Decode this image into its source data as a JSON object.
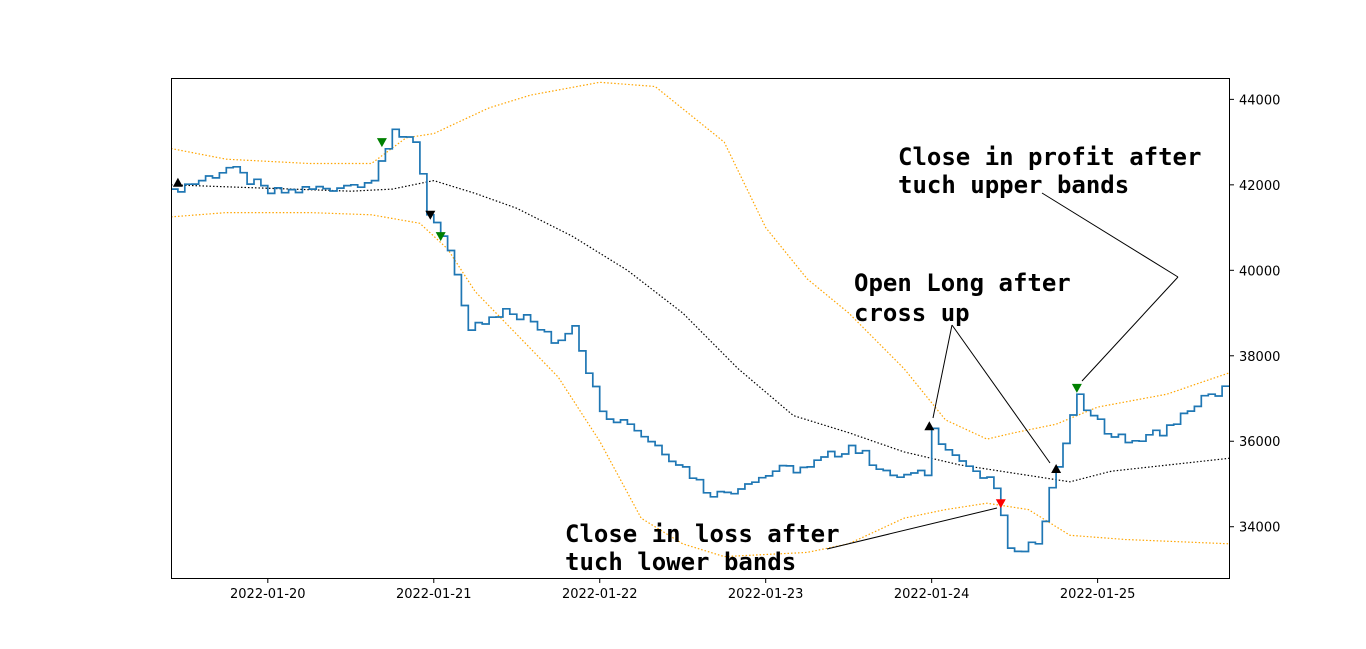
{
  "chart_data": {
    "type": "line",
    "title": "",
    "xlabel": "",
    "ylabel": "",
    "x_range": [
      "2022-01-19 10:00",
      "2022-01-25 19:00"
    ],
    "ylim": [
      32800,
      44500
    ],
    "y_axis_side": "right",
    "grid": false,
    "x_ticks": [
      "2022-01-20",
      "2022-01-21",
      "2022-01-22",
      "2022-01-23",
      "2022-01-24",
      "2022-01-25"
    ],
    "y_ticks": [
      34000,
      36000,
      38000,
      40000,
      42000,
      44000
    ],
    "y_tick_labels": [
      "34000",
      "36000",
      "38000",
      "40000",
      "42000",
      "44000"
    ],
    "colors": {
      "price": "#1f77b4",
      "bands": "#ffa500",
      "middle": "#000000",
      "marker_black": "#000000",
      "marker_green": "#008000",
      "marker_red": "#ff0000"
    },
    "price_anchors": [
      [
        "2022-01-19 10:00",
        41900
      ],
      [
        "2022-01-19 14:00",
        42100
      ],
      [
        "2022-01-19 18:00",
        42400
      ],
      [
        "2022-01-20 00:00",
        41800
      ],
      [
        "2022-01-20 06:00",
        41900
      ],
      [
        "2022-01-20 12:00",
        42000
      ],
      [
        "2022-01-20 15:00",
        42100
      ],
      [
        "2022-01-20 18:00",
        43300
      ],
      [
        "2022-01-20 21:00",
        43000
      ],
      [
        "2022-01-20 23:00",
        41300
      ],
      [
        "2022-01-21 01:00",
        40800
      ],
      [
        "2022-01-21 03:00",
        39900
      ],
      [
        "2022-01-21 05:00",
        38600
      ],
      [
        "2022-01-21 10:00",
        39100
      ],
      [
        "2022-01-21 14:00",
        38800
      ],
      [
        "2022-01-21 17:00",
        38300
      ],
      [
        "2022-01-21 20:00",
        38700
      ],
      [
        "2022-01-22 00:00",
        36700
      ],
      [
        "2022-01-22 04:00",
        36400
      ],
      [
        "2022-01-22 08:00",
        35900
      ],
      [
        "2022-01-22 12:00",
        35400
      ],
      [
        "2022-01-22 16:00",
        34700
      ],
      [
        "2022-01-22 21:00",
        35000
      ],
      [
        "2022-01-23 01:00",
        35300
      ],
      [
        "2022-01-23 06:00",
        35400
      ],
      [
        "2022-01-23 12:00",
        35900
      ],
      [
        "2022-01-23 18:00",
        35200
      ],
      [
        "2022-01-23 23:00",
        35200
      ],
      [
        "2022-01-24 00:00",
        36300
      ],
      [
        "2022-01-24 02:00",
        35800
      ],
      [
        "2022-01-24 06:00",
        35300
      ],
      [
        "2022-01-24 09:00",
        34900
      ],
      [
        "2022-01-24 11:00",
        33500
      ],
      [
        "2022-01-24 15:00",
        33600
      ],
      [
        "2022-01-24 18:00",
        35400
      ],
      [
        "2022-01-24 21:00",
        37100
      ],
      [
        "2022-01-24 23:00",
        36600
      ],
      [
        "2022-01-25 02:00",
        36100
      ],
      [
        "2022-01-25 06:00",
        36000
      ],
      [
        "2022-01-25 11:00",
        36400
      ],
      [
        "2022-01-25 16:00",
        37100
      ],
      [
        "2022-01-25 19:00",
        37300
      ]
    ],
    "upper_band": [
      [
        "2022-01-19 10:00",
        42850
      ],
      [
        "2022-01-19 18:00",
        42600
      ],
      [
        "2022-01-20 06:00",
        42500
      ],
      [
        "2022-01-20 15:00",
        42500
      ],
      [
        "2022-01-20 20:00",
        43100
      ],
      [
        "2022-01-21 00:00",
        43200
      ],
      [
        "2022-01-21 04:00",
        43500
      ],
      [
        "2022-01-21 08:00",
        43800
      ],
      [
        "2022-01-21 14:00",
        44100
      ],
      [
        "2022-01-22 00:00",
        44400
      ],
      [
        "2022-01-22 08:00",
        44300
      ],
      [
        "2022-01-22 18:00",
        43000
      ],
      [
        "2022-01-23 00:00",
        41000
      ],
      [
        "2022-01-23 06:00",
        39800
      ],
      [
        "2022-01-23 12:00",
        39000
      ],
      [
        "2022-01-23 20:00",
        37700
      ],
      [
        "2022-01-24 02:00",
        36500
      ],
      [
        "2022-01-24 08:00",
        36050
      ],
      [
        "2022-01-24 12:00",
        36200
      ],
      [
        "2022-01-24 18:00",
        36400
      ],
      [
        "2022-01-25 00:00",
        36800
      ],
      [
        "2022-01-25 10:00",
        37100
      ],
      [
        "2022-01-25 19:00",
        37600
      ]
    ],
    "lower_band": [
      [
        "2022-01-19 10:00",
        41250
      ],
      [
        "2022-01-19 18:00",
        41350
      ],
      [
        "2022-01-20 06:00",
        41350
      ],
      [
        "2022-01-20 15:00",
        41300
      ],
      [
        "2022-01-20 22:00",
        41100
      ],
      [
        "2022-01-21 02:00",
        40500
      ],
      [
        "2022-01-21 06:00",
        39500
      ],
      [
        "2022-01-21 12:00",
        38500
      ],
      [
        "2022-01-21 18:00",
        37500
      ],
      [
        "2022-01-22 00:00",
        36000
      ],
      [
        "2022-01-22 06:00",
        34200
      ],
      [
        "2022-01-22 12:00",
        33600
      ],
      [
        "2022-01-22 18:00",
        33300
      ],
      [
        "2022-01-23 06:00",
        33400
      ],
      [
        "2022-01-23 12:00",
        33600
      ],
      [
        "2022-01-23 20:00",
        34200
      ],
      [
        "2022-01-24 02:00",
        34400
      ],
      [
        "2022-01-24 08:00",
        34550
      ],
      [
        "2022-01-24 14:00",
        34400
      ],
      [
        "2022-01-24 20:00",
        33800
      ],
      [
        "2022-01-25 04:00",
        33700
      ],
      [
        "2022-01-25 19:00",
        33600
      ]
    ],
    "middle_band": [
      [
        "2022-01-19 10:00",
        42000
      ],
      [
        "2022-01-20 12:00",
        41850
      ],
      [
        "2022-01-20 18:00",
        41900
      ],
      [
        "2022-01-21 00:00",
        42100
      ],
      [
        "2022-01-21 06:00",
        41800
      ],
      [
        "2022-01-21 12:00",
        41450
      ],
      [
        "2022-01-21 20:00",
        40800
      ],
      [
        "2022-01-22 04:00",
        40000
      ],
      [
        "2022-01-22 12:00",
        39000
      ],
      [
        "2022-01-22 20:00",
        37700
      ],
      [
        "2022-01-23 04:00",
        36600
      ],
      [
        "2022-01-23 12:00",
        36200
      ],
      [
        "2022-01-23 20:00",
        35750
      ],
      [
        "2022-01-24 04:00",
        35450
      ],
      [
        "2022-01-24 12:00",
        35250
      ],
      [
        "2022-01-24 20:00",
        35050
      ],
      [
        "2022-01-25 02:00",
        35300
      ],
      [
        "2022-01-25 19:00",
        35600
      ]
    ],
    "markers": [
      {
        "x": "2022-01-19 11:00",
        "y": 42050,
        "shape": "triangle-up",
        "color": "#000000"
      },
      {
        "x": "2022-01-20 16:30",
        "y": 43000,
        "shape": "triangle-down",
        "color": "#008000"
      },
      {
        "x": "2022-01-20 23:30",
        "y": 41300,
        "shape": "triangle-down",
        "color": "#000000"
      },
      {
        "x": "2022-01-21 01:00",
        "y": 40800,
        "shape": "triangle-down",
        "color": "#008000"
      },
      {
        "x": "2022-01-23 23:40",
        "y": 36350,
        "shape": "triangle-up",
        "color": "#000000"
      },
      {
        "x": "2022-01-24 10:00",
        "y": 34550,
        "shape": "triangle-down",
        "color": "#ff0000"
      },
      {
        "x": "2022-01-24 18:00",
        "y": 35350,
        "shape": "triangle-up",
        "color": "#000000"
      },
      {
        "x": "2022-01-24 21:00",
        "y": 37250,
        "shape": "triangle-down",
        "color": "#008000"
      }
    ],
    "annotations": [
      {
        "id": "close-profit",
        "lines": [
          "Close in profit after",
          "tuch upper bands"
        ]
      },
      {
        "id": "open-long",
        "lines": [
          "Open Long after",
          "cross up"
        ]
      },
      {
        "id": "close-loss",
        "lines": [
          "Close in loss after",
          "tuch lower bands"
        ]
      }
    ]
  }
}
